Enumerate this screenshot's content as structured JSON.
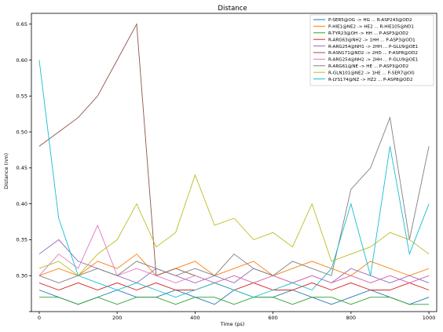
{
  "chart_data": {
    "type": "line",
    "title": "Distance",
    "xlabel": "Time (ps)",
    "ylabel": "Distance (nm)",
    "xlim": [
      -20,
      1020
    ],
    "ylim": [
      0.25,
      0.665
    ],
    "xticks": [
      0,
      200,
      400,
      600,
      800,
      1000
    ],
    "yticks": [
      0.25,
      0.3,
      0.35,
      0.4,
      0.45,
      0.5,
      0.55,
      0.6,
      0.65
    ],
    "ytick_labels": [
      "",
      "0.30",
      "0.35",
      "0.40",
      "0.45",
      "0.50",
      "0.55",
      "0.60",
      "0.65"
    ],
    "legend_position": "top-right",
    "x": [
      0,
      50,
      100,
      150,
      200,
      250,
      300,
      350,
      400,
      450,
      500,
      550,
      600,
      650,
      700,
      750,
      800,
      850,
      900,
      950,
      1000
    ],
    "series": [
      {
        "name": "P-SER5@OG -> HG ... R-ASP243@OD2",
        "color": "#1f77b4",
        "values": [
          0.28,
          0.27,
          0.26,
          0.27,
          0.28,
          0.27,
          0.27,
          0.28,
          0.27,
          0.26,
          0.28,
          0.27,
          0.27,
          0.28,
          0.27,
          0.26,
          0.27,
          0.28,
          0.27,
          0.26,
          0.27
        ]
      },
      {
        "name": "P-HIE1@NE2 -> HE2 ... R-HIE105@ND1",
        "color": "#ff7f0e",
        "values": [
          0.3,
          0.31,
          0.3,
          0.32,
          0.31,
          0.33,
          0.3,
          0.31,
          0.32,
          0.3,
          0.31,
          0.32,
          0.3,
          0.31,
          0.32,
          0.31,
          0.3,
          0.32,
          0.31,
          0.3,
          0.31
        ]
      },
      {
        "name": "R-TYR23@OH -> HH ... P-ASP3@OD2",
        "color": "#2ca02c",
        "values": [
          0.27,
          0.27,
          0.26,
          0.27,
          0.26,
          0.27,
          0.27,
          0.26,
          0.27,
          0.27,
          0.26,
          0.27,
          0.27,
          0.26,
          0.27,
          0.27,
          0.26,
          0.27,
          0.27,
          0.26,
          0.26
        ]
      },
      {
        "name": "R-ARG63@NH2 -> 1HH ... P-ASP3@OD1",
        "color": "#d62728",
        "values": [
          0.29,
          0.28,
          0.29,
          0.28,
          0.29,
          0.28,
          0.29,
          0.28,
          0.28,
          0.29,
          0.28,
          0.29,
          0.28,
          0.28,
          0.29,
          0.28,
          0.29,
          0.28,
          0.28,
          0.29,
          0.28
        ]
      },
      {
        "name": "R-ARG254@NH1 -> 2HH ... P-GLU9@OE1",
        "color": "#9467bd",
        "values": [
          0.33,
          0.35,
          0.32,
          0.31,
          0.3,
          0.29,
          0.31,
          0.3,
          0.29,
          0.3,
          0.29,
          0.31,
          0.3,
          0.29,
          0.3,
          0.29,
          0.31,
          0.3,
          0.29,
          0.3,
          0.29
        ]
      },
      {
        "name": "R-ASN171@ND2 -> 2HD ... P-ASP8@OD2",
        "color": "#8c564b",
        "values": [
          0.48,
          0.5,
          0.52,
          0.55,
          0.6,
          0.65,
          0.3,
          0.31,
          0.3,
          0.29,
          0.3,
          0.29,
          0.3,
          0.29,
          0.3,
          0.29,
          0.3,
          0.29,
          0.3,
          0.29,
          0.3
        ]
      },
      {
        "name": "R-ARG254@NH2 -> 2HH ... P-GLU9@OE1",
        "color": "#e377c2",
        "values": [
          0.3,
          0.33,
          0.31,
          0.37,
          0.3,
          0.31,
          0.3,
          0.29,
          0.3,
          0.29,
          0.3,
          0.29,
          0.3,
          0.29,
          0.3,
          0.29,
          0.3,
          0.29,
          0.3,
          0.29,
          0.3
        ]
      },
      {
        "name": "R-ARG61@NE -> HE ... P-ASP3@OD2",
        "color": "#7f7f7f",
        "values": [
          0.3,
          0.29,
          0.3,
          0.31,
          0.3,
          0.32,
          0.31,
          0.3,
          0.31,
          0.3,
          0.33,
          0.31,
          0.3,
          0.32,
          0.31,
          0.3,
          0.42,
          0.45,
          0.52,
          0.35,
          0.48
        ]
      },
      {
        "name": "R-GLN101@NE2 -> 1HE ... P-SER7@OG",
        "color": "#bcbd22",
        "values": [
          0.31,
          0.32,
          0.3,
          0.33,
          0.35,
          0.4,
          0.34,
          0.36,
          0.44,
          0.37,
          0.38,
          0.35,
          0.36,
          0.34,
          0.4,
          0.32,
          0.33,
          0.34,
          0.36,
          0.35,
          0.33
        ]
      },
      {
        "name": "R-LYS174@NZ -> HZ2 ... P-ASP8@OD2",
        "color": "#17becf",
        "values": [
          0.6,
          0.38,
          0.3,
          0.29,
          0.28,
          0.29,
          0.28,
          0.27,
          0.28,
          0.29,
          0.28,
          0.27,
          0.28,
          0.29,
          0.28,
          0.31,
          0.4,
          0.3,
          0.48,
          0.33,
          0.4
        ]
      }
    ]
  }
}
